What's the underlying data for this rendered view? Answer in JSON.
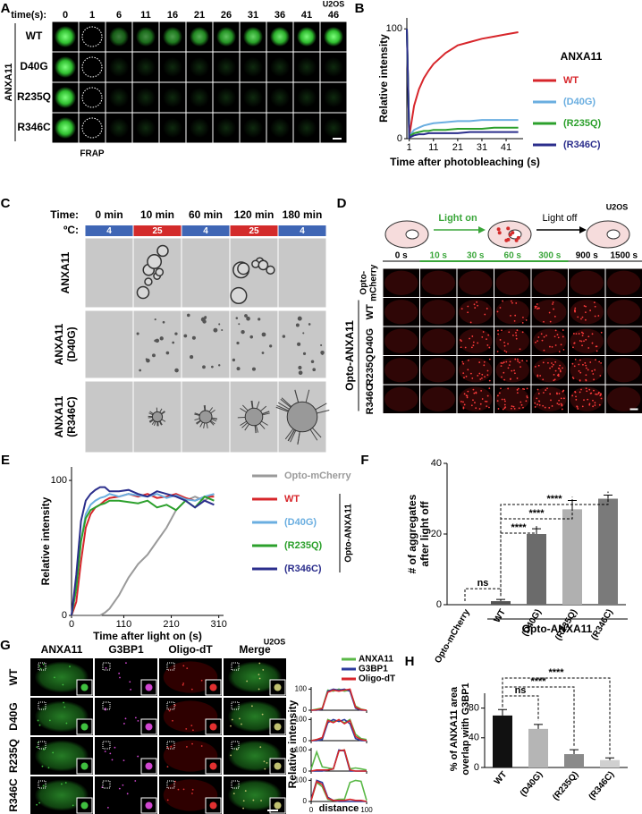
{
  "panel_a": {
    "label": "A",
    "header": "time(s):",
    "times": [
      "0",
      "1",
      "6",
      "11",
      "16",
      "21",
      "26",
      "31",
      "36",
      "41",
      "46"
    ],
    "cell_line": "U2OS",
    "group": "ANXA11",
    "rows": [
      "WT",
      "D40G",
      "R235Q",
      "R346C"
    ],
    "frap": "FRAP"
  },
  "panel_c": {
    "label": "C",
    "time_header": "Time:",
    "temp_header": "ºC:",
    "times": [
      "0 min",
      "10 min",
      "60 min",
      "120 min",
      "180 min"
    ],
    "temps": [
      "4",
      "25",
      "4",
      "25",
      "4"
    ],
    "temp_colors": [
      "#3f66b5",
      "#d32b2b",
      "#3f66b5",
      "#d32b2b",
      "#3f66b5"
    ],
    "rows": [
      [
        "ANXA11"
      ],
      [
        "ANXA11",
        "(D40G)"
      ],
      [
        "ANXA11",
        "(R346C)"
      ]
    ]
  },
  "panel_d": {
    "label": "D",
    "light_on": "Light on",
    "light_off": "Light off",
    "cell_line": "U2OS",
    "times": [
      "0 s",
      "10 s",
      "30 s",
      "60 s",
      "300 s",
      "900 s",
      "1500 s"
    ],
    "control_row": [
      "Opto-",
      "mCherry"
    ],
    "group": "Opto-ANXA11",
    "rows": [
      "WT",
      "D40G",
      "R235Q",
      "R346C"
    ]
  },
  "panel_g": {
    "label": "G",
    "columns": [
      "ANXA11",
      "G3BP1",
      "Oligo-dT",
      "Merge"
    ],
    "cell_line": "U2OS",
    "rows": [
      "WT",
      "D40G",
      "R235Q",
      "R346C"
    ]
  },
  "chart_data": [
    {
      "type": "line",
      "panel": "B",
      "ylabel": "Relative intensity",
      "xlabel": "Time after photobleaching (s)",
      "legend_title": "ANXA11",
      "x": [
        0,
        1,
        3,
        5,
        7,
        9,
        11,
        16,
        21,
        26,
        31,
        36,
        41,
        46
      ],
      "xlim": [
        0,
        48
      ],
      "xticks": [
        1,
        11,
        21,
        31,
        41
      ],
      "ylim": [
        0,
        110
      ],
      "yticks": [
        0,
        100
      ],
      "series": [
        {
          "name": "WT",
          "color": "#d7262b",
          "values": [
            100,
            2,
            30,
            45,
            55,
            62,
            68,
            78,
            85,
            88,
            91,
            93,
            95,
            97
          ]
        },
        {
          "name": "(D40G)",
          "color": "#6aaee0",
          "values": [
            100,
            2,
            8,
            10,
            12,
            13,
            14,
            15,
            16,
            16,
            17,
            17,
            17,
            17
          ]
        },
        {
          "name": "(R235Q)",
          "color": "#2ca02c",
          "values": [
            100,
            2,
            5,
            6,
            7,
            7,
            8,
            8,
            9,
            9,
            9,
            10,
            10,
            10
          ]
        },
        {
          "name": "(R346C)",
          "color": "#2b2e8c",
          "values": [
            100,
            1,
            3,
            4,
            4,
            5,
            5,
            5,
            5,
            6,
            6,
            6,
            6,
            6
          ]
        }
      ]
    },
    {
      "type": "line",
      "panel": "E",
      "ylabel": "Relative intensity",
      "xlabel": "Time after light on (s)",
      "legend_group": "Opto-ANXA11",
      "x": [
        0,
        10,
        20,
        30,
        40,
        50,
        60,
        70,
        80,
        100,
        120,
        140,
        160,
        180,
        200,
        220,
        240,
        260,
        280,
        300
      ],
      "xlim": [
        0,
        320
      ],
      "xticks": [
        0,
        110,
        210,
        310
      ],
      "ylim": [
        0,
        110
      ],
      "yticks": [
        0,
        100
      ],
      "series": [
        {
          "name": "Opto-mCherry",
          "color": "#9a9a9a",
          "values": [
            0,
            0,
            0,
            0,
            0,
            0,
            0,
            2,
            5,
            15,
            28,
            38,
            45,
            55,
            65,
            78,
            85,
            88,
            85,
            90
          ]
        },
        {
          "name": "WT",
          "color": "#d7262b",
          "values": [
            0,
            10,
            40,
            65,
            75,
            80,
            82,
            85,
            87,
            88,
            90,
            88,
            90,
            87,
            88,
            90,
            87,
            85,
            88,
            88
          ]
        },
        {
          "name": "(D40G)",
          "color": "#6aaee0",
          "values": [
            0,
            20,
            55,
            75,
            82,
            85,
            87,
            88,
            90,
            88,
            90,
            89,
            88,
            90,
            87,
            89,
            86,
            85,
            88,
            90
          ]
        },
        {
          "name": "(R235Q)",
          "color": "#2ca02c",
          "values": [
            0,
            20,
            55,
            72,
            78,
            80,
            82,
            83,
            85,
            85,
            84,
            83,
            85,
            80,
            82,
            78,
            85,
            80,
            88,
            85
          ]
        },
        {
          "name": "(R346C)",
          "color": "#2b2e8c",
          "values": [
            0,
            30,
            70,
            85,
            90,
            93,
            95,
            95,
            92,
            92,
            93,
            90,
            88,
            92,
            90,
            88,
            85,
            80,
            85,
            82
          ]
        }
      ]
    },
    {
      "type": "bar",
      "panel": "F",
      "ylabel": [
        "# of aggregates",
        "after light off"
      ],
      "group_label": "Opto-ANXA11",
      "categories": [
        "Opto-mCherry",
        "WT",
        "(D40G)",
        "(R235Q)",
        "(R346C)"
      ],
      "values": [
        0,
        1,
        20,
        27,
        30
      ],
      "errors": [
        0,
        0.5,
        1.5,
        2.5,
        1
      ],
      "colors": [
        "#555555",
        "#555555",
        "#6b6b6b",
        "#b0b0b0",
        "#7a7a7a"
      ],
      "ylim": [
        0,
        40
      ],
      "yticks": [
        0,
        20,
        40
      ],
      "significance": [
        "ns",
        "****",
        "****",
        "****"
      ]
    },
    {
      "type": "line",
      "panel": "G",
      "ylabel": "Relative intensity",
      "xlabel": "distance",
      "x": [
        0,
        10,
        20,
        30,
        40,
        50,
        60,
        70,
        80,
        90,
        100
      ],
      "xlim": [
        0,
        100
      ],
      "xticks": [
        0,
        100
      ],
      "ylim": [
        0,
        110
      ],
      "yticks": [
        0,
        100
      ],
      "series": [
        {
          "name": "ANXA11",
          "color": "#5ab847",
          "values": [
            [
              0,
              5,
              10,
              95,
              90,
              100,
              90,
              95,
              20,
              5,
              0
            ],
            [
              0,
              5,
              10,
              100,
              90,
              95,
              85,
              100,
              30,
              10,
              5
            ],
            [
              10,
              90,
              20,
              15,
              10,
              95,
              100,
              10,
              15,
              10,
              5
            ],
            [
              5,
              90,
              70,
              10,
              5,
              10,
              10,
              90,
              100,
              95,
              5
            ]
          ]
        },
        {
          "name": "G3BP1",
          "color": "#2b3a9c",
          "values": [
            [
              0,
              0,
              5,
              90,
              100,
              95,
              100,
              90,
              10,
              0,
              0
            ],
            [
              0,
              0,
              5,
              85,
              100,
              90,
              100,
              80,
              10,
              0,
              0
            ],
            [
              0,
              0,
              0,
              5,
              10,
              100,
              95,
              0,
              0,
              0,
              0
            ],
            [
              10,
              100,
              90,
              20,
              5,
              0,
              0,
              0,
              0,
              0,
              0
            ]
          ]
        },
        {
          "name": "Oligo-dT",
          "color": "#d7262b",
          "values": [
            [
              0,
              2,
              8,
              85,
              95,
              90,
              95,
              100,
              15,
              3,
              0
            ],
            [
              0,
              5,
              15,
              95,
              85,
              100,
              80,
              95,
              20,
              5,
              0
            ],
            [
              0,
              5,
              5,
              5,
              10,
              95,
              100,
              5,
              0,
              0,
              0
            ],
            [
              5,
              95,
              80,
              15,
              5,
              5,
              5,
              10,
              5,
              5,
              0
            ]
          ]
        }
      ]
    },
    {
      "type": "bar",
      "panel": "H",
      "ylabel": [
        "% of ANXA11 area",
        "overlap with G3BP1"
      ],
      "categories": [
        "WT",
        "(D40G)",
        "(R235Q)",
        "(R346C)"
      ],
      "values": [
        70,
        52,
        18,
        10
      ],
      "errors": [
        8,
        6,
        6,
        3
      ],
      "colors": [
        "#111111",
        "#b5b5b5",
        "#8a8a8a",
        "#d0d0d0"
      ],
      "ylim": [
        0,
        100
      ],
      "yticks": [
        0,
        40,
        80
      ],
      "significance": [
        "ns",
        "****",
        "****"
      ]
    }
  ]
}
